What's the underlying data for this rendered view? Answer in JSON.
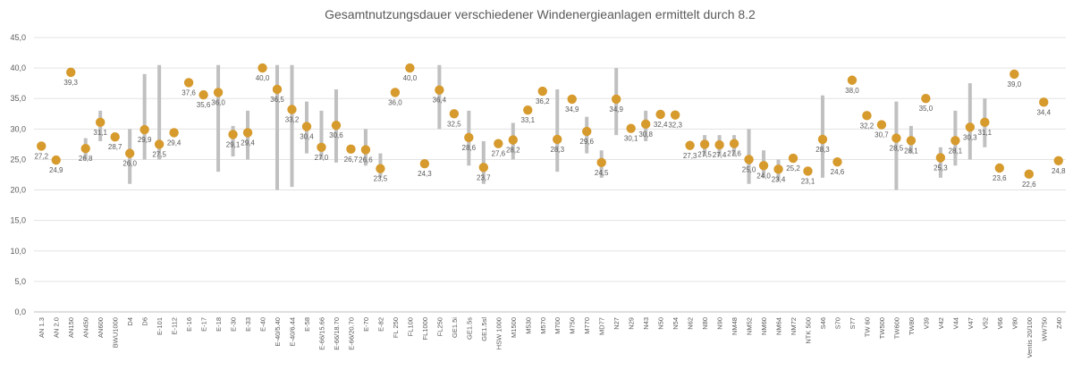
{
  "chart_data": {
    "type": "scatter",
    "title": "Gesamtnutzungsdauer verschiedener Windenergieanlagen ermittelt durch 8.2",
    "xlabel": "",
    "ylabel": "",
    "ylim": [
      0,
      45
    ],
    "ytick_labels": [
      "0,0",
      "5,0",
      "10,0",
      "15,0",
      "20,0",
      "25,0",
      "30,0",
      "35,0",
      "40,0",
      "45,0"
    ],
    "grid": true,
    "colors": {
      "point": "#d69a2d",
      "range": "#c0c0c0",
      "grid": "#e3e3e3",
      "text": "#595959"
    },
    "categories": [
      "AN 1.3",
      "AN 2.0",
      "AN150",
      "AN450",
      "AN600",
      "BWU1000",
      "D4",
      "D6",
      "E-101",
      "E-112",
      "E-16",
      "E-17",
      "E-18",
      "E-30",
      "E-33",
      "E-40",
      "E-40/5.40",
      "E-40/6.44",
      "E-58",
      "E-66/15.66",
      "E-66/18.70",
      "E-66/20.70",
      "E-70",
      "E-82",
      "FL 250",
      "FL100",
      "FL1000",
      "FL250",
      "GE1.5i",
      "GE1.5s",
      "GE1.5sl",
      "HSW 1000",
      "M1500",
      "M530",
      "M570",
      "M700",
      "M750",
      "M770",
      "MD77",
      "N27",
      "N29",
      "N43",
      "N50",
      "N54",
      "N62",
      "N80",
      "N90",
      "NM48",
      "NM52",
      "NM60",
      "NM64",
      "NM72",
      "NTK 500",
      "S46",
      "S70",
      "S77",
      "TW 60",
      "TW500",
      "TW600",
      "TW80",
      "V39",
      "V42",
      "V44",
      "V47",
      "V52",
      "V66",
      "V80",
      "Ventis 20/100",
      "WW750",
      "Z40"
    ],
    "values": [
      27.2,
      24.9,
      39.3,
      26.8,
      31.1,
      28.7,
      26.0,
      29.9,
      27.5,
      29.4,
      37.6,
      35.6,
      36.0,
      29.1,
      29.4,
      40.0,
      36.5,
      33.2,
      30.4,
      27.0,
      30.6,
      26.7,
      26.6,
      23.5,
      36.0,
      40.0,
      24.3,
      36.4,
      32.5,
      28.6,
      23.7,
      27.6,
      28.2,
      33.1,
      36.2,
      28.3,
      34.9,
      29.6,
      24.5,
      34.9,
      30.1,
      30.8,
      32.4,
      32.3,
      27.3,
      27.5,
      27.4,
      27.6,
      25.0,
      24.0,
      23.4,
      25.2,
      23.1,
      28.3,
      24.6,
      38.0,
      32.2,
      30.7,
      28.5,
      28.1,
      35.0,
      25.3,
      28.1,
      30.3,
      31.1,
      23.6,
      39.0,
      22.6,
      34.4,
      24.8
    ],
    "value_labels": [
      "27,2",
      "24,9",
      "39,3",
      "26,8",
      "31,1",
      "28,7",
      "26,0",
      "29,9",
      "27,5",
      "29,4",
      "37,6",
      "35,6",
      "36,0",
      "29,1",
      "29,4",
      "40,0",
      "36,5",
      "33,2",
      "30,4",
      "27,0",
      "30,6",
      "26,7",
      "26,6",
      "23,5",
      "36,0",
      "40,0",
      "24,3",
      "36,4",
      "32,5",
      "28,6",
      "23,7",
      "27,6",
      "28,2",
      "33,1",
      "36,2",
      "28,3",
      "34,9",
      "29,6",
      "24,5",
      "34,9",
      "30,1",
      "30,8",
      "32,4",
      "32,3",
      "27,3",
      "27,5",
      "27,4",
      "27,6",
      "25,0",
      "24,0",
      "23,4",
      "25,2",
      "23,1",
      "28,3",
      "24,6",
      "38,0",
      "32,2",
      "30,7",
      "28,5",
      "28,1",
      "35,0",
      "25,3",
      "28,1",
      "30,3",
      "31,1",
      "23,6",
      "39,0",
      "22,6",
      "34,4",
      "24,8"
    ],
    "range_low": [
      null,
      null,
      null,
      25.0,
      28.0,
      null,
      21.0,
      25.0,
      25.0,
      null,
      null,
      null,
      23.0,
      25.5,
      25.0,
      null,
      20.0,
      20.5,
      26.0,
      25.0,
      24.5,
      null,
      24.0,
      22.0,
      null,
      null,
      null,
      30.0,
      null,
      24.0,
      21.0,
      null,
      25.0,
      null,
      null,
      23.0,
      null,
      26.0,
      22.0,
      29.0,
      null,
      28.0,
      null,
      null,
      null,
      25.5,
      25.5,
      25.5,
      21.0,
      22.0,
      21.5,
      null,
      null,
      22.0,
      null,
      null,
      null,
      null,
      20.0,
      26.0,
      null,
      22.0,
      24.0,
      25.0,
      27.0,
      null,
      null,
      null,
      null,
      null
    ],
    "range_high": [
      null,
      null,
      null,
      28.5,
      33.0,
      null,
      30.0,
      39.0,
      40.5,
      null,
      null,
      40.5,
      40.5,
      30.5,
      33.0,
      null,
      40.5,
      40.5,
      34.5,
      33.0,
      36.5,
      null,
      30.0,
      26.0,
      null,
      null,
      null,
      40.5,
      null,
      33.0,
      28.0,
      null,
      31.0,
      null,
      null,
      36.5,
      null,
      32.0,
      26.5,
      40.0,
      null,
      33.0,
      null,
      null,
      null,
      29.0,
      29.0,
      29.0,
      30.0,
      26.5,
      25.0,
      null,
      null,
      35.5,
      null,
      null,
      null,
      null,
      34.5,
      30.5,
      null,
      27.0,
      33.0,
      37.5,
      35.0,
      null,
      null,
      null,
      null,
      null
    ]
  }
}
